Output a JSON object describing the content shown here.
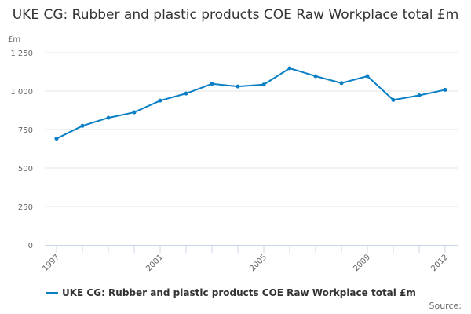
{
  "chart_data": {
    "type": "line",
    "title": "UKE CG: Rubber and plastic products COE Raw Workplace total £m",
    "ylabel": "£m",
    "xlabel": "",
    "ylim": [
      0,
      1250
    ],
    "yticks": [
      "0",
      "250",
      "500",
      "750",
      "1 000",
      "1 250"
    ],
    "ytick_values": [
      0,
      250,
      500,
      750,
      1000,
      1250
    ],
    "x": [
      1997,
      1998,
      1999,
      2000,
      2001,
      2002,
      2003,
      2004,
      2005,
      2006,
      2007,
      2008,
      2009,
      2010,
      2011,
      2012
    ],
    "xtick_labels": [
      "1997",
      "2001",
      "2005",
      "2009",
      "2012"
    ],
    "series": [
      {
        "name": "UKE CG: Rubber and plastic products COE Raw Workplace total £m",
        "color": "#0a7fc5",
        "values": [
          691,
          774,
          826,
          862,
          938,
          984,
          1047,
          1030,
          1042,
          1148,
          1097,
          1052,
          1097,
          942,
          972,
          1008
        ]
      }
    ],
    "grid": true,
    "legend": "bottom",
    "source_label": "Source:"
  }
}
